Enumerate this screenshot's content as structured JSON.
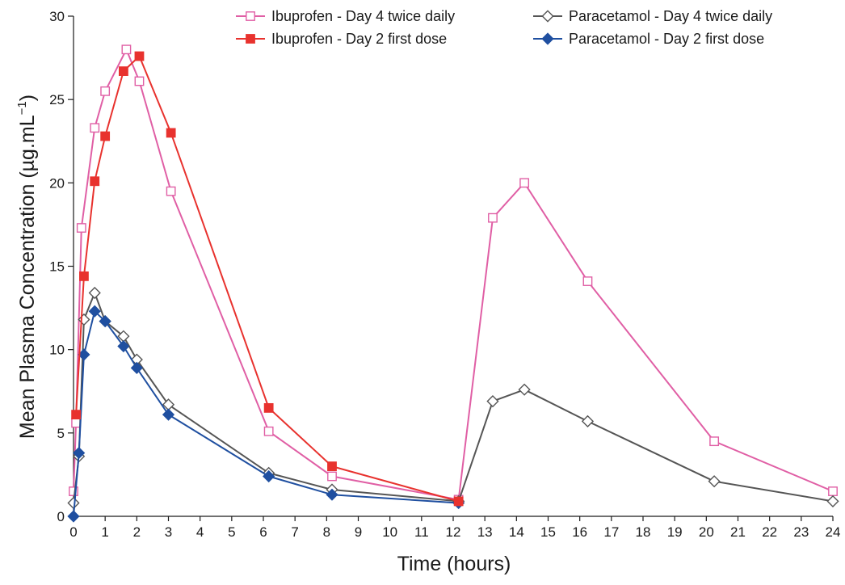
{
  "chart_data": {
    "type": "line",
    "xlabel": "Time (hours)",
    "ylabel": "Mean Plasma Concentration (µg.mL",
    "ylabel_sup": "−1",
    "ylabel_close": ")",
    "xlim": [
      0,
      24
    ],
    "ylim": [
      0,
      30
    ],
    "xticks": [
      "0",
      "1",
      "2",
      "3",
      "4",
      "5",
      "6",
      "7",
      "8",
      "9",
      "10",
      "11",
      "12",
      "13",
      "14",
      "15",
      "16",
      "17",
      "18",
      "19",
      "20",
      "21",
      "22",
      "23",
      "24"
    ],
    "yticks": [
      "0",
      "5",
      "10",
      "15",
      "20",
      "25",
      "30"
    ],
    "grid": false,
    "legend_position": "top-right",
    "series": [
      {
        "name": "Ibuprofen - Day 4 twice daily",
        "color": "#e05fa5",
        "marker": "square-open",
        "x": [
          0,
          0.08,
          0.25,
          0.67,
          1.0,
          1.67,
          2.08,
          3.08,
          6.17,
          8.17,
          12.17,
          13.25,
          14.25,
          16.25,
          20.25,
          24.0
        ],
        "y": [
          1.5,
          5.6,
          17.3,
          23.3,
          25.5,
          28.0,
          26.1,
          19.5,
          5.1,
          2.4,
          1.0,
          17.9,
          20.0,
          14.1,
          4.5,
          1.5
        ]
      },
      {
        "name": "Ibuprofen - Day 2 first dose",
        "color": "#e8322e",
        "marker": "square-filled",
        "x": [
          0.08,
          0.33,
          0.67,
          1.0,
          1.58,
          2.08,
          3.08,
          6.17,
          8.17,
          12.17
        ],
        "y": [
          6.1,
          14.4,
          20.1,
          22.8,
          26.7,
          27.6,
          23.0,
          6.5,
          3.0,
          0.9
        ]
      },
      {
        "name": "Paracetamol - Day 4 twice daily",
        "color": "#555555",
        "marker": "diamond-open",
        "x": [
          0,
          0.17,
          0.33,
          0.67,
          1.0,
          1.58,
          2.0,
          3.0,
          6.17,
          8.17,
          12.17,
          13.25,
          14.25,
          16.25,
          20.25,
          24.0
        ],
        "y": [
          0.8,
          3.6,
          11.8,
          13.4,
          11.7,
          10.8,
          9.4,
          6.7,
          2.6,
          1.6,
          0.9,
          6.9,
          7.6,
          5.7,
          2.1,
          0.9
        ]
      },
      {
        "name": "Paracetamol - Day 2 first dose",
        "color": "#1f4fa0",
        "marker": "diamond-filled",
        "x": [
          0,
          0.17,
          0.33,
          0.67,
          1.0,
          1.58,
          2.0,
          3.0,
          6.17,
          8.17,
          12.17
        ],
        "y": [
          0,
          3.8,
          9.7,
          12.3,
          11.7,
          10.2,
          8.9,
          6.1,
          2.4,
          1.3,
          0.8
        ]
      }
    ]
  }
}
